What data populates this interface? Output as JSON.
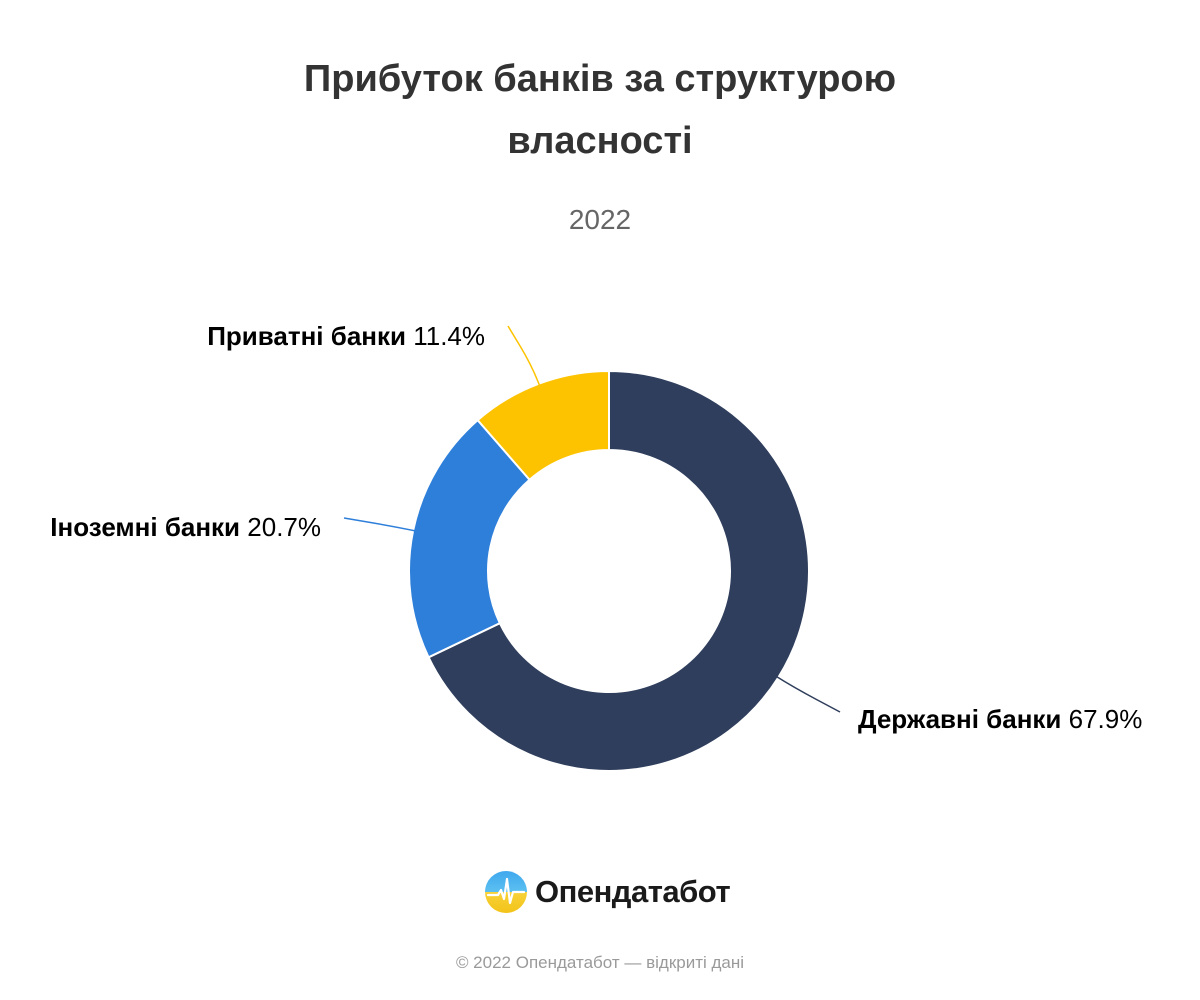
{
  "chart_data": {
    "type": "pie",
    "title": "Прибуток банків за структурою власності",
    "subtitle": "2022",
    "categories": [
      "Державні банки",
      "Іноземні банки",
      "Приватні банки"
    ],
    "values": [
      67.9,
      20.7,
      11.4
    ],
    "colors": [
      "#2f3e5c",
      "#2e7fda",
      "#fdc300"
    ],
    "labels": [
      {
        "name": "Державні банки",
        "value": "67.9%"
      },
      {
        "name": "Іноземні банки",
        "value": "20.7%"
      },
      {
        "name": "Приватні банки",
        "value": "11.4%"
      }
    ]
  },
  "brand": {
    "name": "Опендатабот",
    "footer": "© 2022 Опендатабот — відкриті дані"
  }
}
